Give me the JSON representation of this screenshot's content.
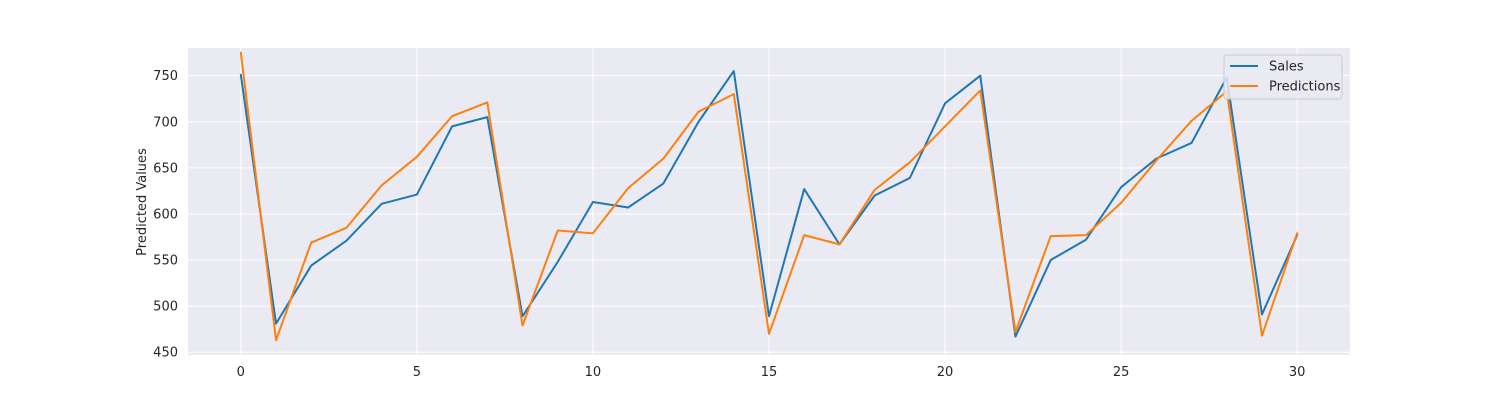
{
  "chart_data": {
    "type": "line",
    "title": "",
    "xlabel": "",
    "ylabel": "Predicted Values",
    "xlim": [
      -1.5,
      31.5
    ],
    "ylim": [
      447,
      780
    ],
    "x_ticks": [
      0,
      5,
      10,
      15,
      20,
      25,
      30
    ],
    "y_ticks": [
      450,
      500,
      550,
      600,
      650,
      700,
      750
    ],
    "grid": true,
    "legend_position": "top-right",
    "x": [
      0,
      1,
      2,
      3,
      4,
      5,
      6,
      7,
      8,
      9,
      10,
      11,
      12,
      13,
      14,
      15,
      16,
      17,
      18,
      19,
      20,
      21,
      22,
      23,
      24,
      25,
      26,
      27,
      28,
      29,
      30
    ],
    "series": [
      {
        "name": "Sales",
        "color": "#1f77b4",
        "values": [
          751,
          481,
          544,
          571,
          611,
          621,
          695,
          705,
          489,
          548,
          613,
          607,
          633,
          700,
          755,
          489,
          627,
          567,
          620,
          639,
          720,
          750,
          467,
          550,
          572,
          629,
          660,
          677,
          748,
          491,
          577
        ]
      },
      {
        "name": "Predictions",
        "color": "#ff7f0e",
        "values": [
          775,
          463,
          569,
          585,
          631,
          662,
          706,
          721,
          479,
          582,
          579,
          628,
          660,
          711,
          730,
          470,
          577,
          567,
          626,
          656,
          695,
          734,
          472,
          576,
          577,
          612,
          658,
          701,
          733,
          468,
          579
        ]
      }
    ]
  }
}
